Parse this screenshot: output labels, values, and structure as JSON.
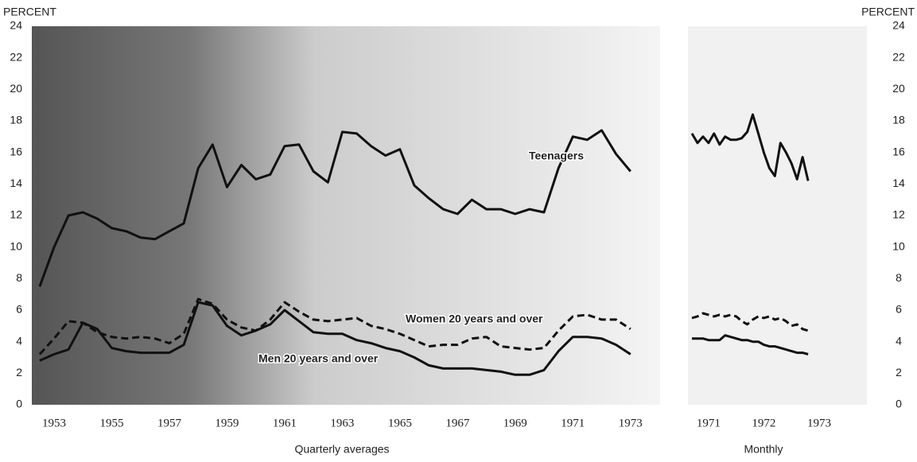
{
  "chart_data": [
    {
      "type": "line",
      "ylabel": "PERCENT",
      "xlabel": "Quarterly averages",
      "xlim": [
        1952.2,
        1973.2
      ],
      "xticks": [
        1953,
        1955,
        1957,
        1959,
        1961,
        1963,
        1965,
        1967,
        1969,
        1971,
        1973
      ],
      "ylim": [
        0,
        24
      ],
      "yticks": [
        0,
        2,
        4,
        6,
        8,
        10,
        12,
        14,
        16,
        18,
        20,
        22,
        24
      ],
      "grid": false,
      "x": [
        1952.5,
        1953,
        1953.5,
        1954,
        1954.5,
        1955,
        1955.5,
        1956,
        1956.5,
        1957,
        1957.5,
        1958,
        1958.5,
        1959,
        1959.5,
        1960,
        1960.5,
        1961,
        1961.5,
        1962,
        1962.5,
        1963,
        1963.5,
        1964,
        1964.5,
        1965,
        1965.5,
        1966,
        1966.5,
        1967,
        1967.5,
        1968,
        1968.5,
        1969,
        1969.5,
        1970,
        1970.5,
        1971,
        1971.5,
        1972,
        1972.5,
        1973
      ],
      "series": [
        {
          "name": "Teenagers",
          "color": "#111111",
          "dash": false,
          "values": [
            7.5,
            10,
            12,
            12.2,
            11.8,
            11.2,
            11,
            10.6,
            10.5,
            11,
            11.5,
            15,
            16.5,
            13.8,
            15.2,
            14.3,
            14.6,
            16.4,
            16.5,
            14.8,
            14.1,
            17.3,
            17.2,
            16.4,
            15.8,
            16.2,
            13.9,
            13.1,
            12.4,
            12.1,
            13,
            12.4,
            12.4,
            12.1,
            12.4,
            12.2,
            15,
            17,
            16.8,
            17.4,
            15.9,
            14.8
          ]
        },
        {
          "name": "Women 20 years and over",
          "color": "#111111",
          "dash": true,
          "values": [
            3.2,
            4.2,
            5.3,
            5.2,
            4.6,
            4.3,
            4.2,
            4.3,
            4.2,
            3.9,
            4.5,
            6.7,
            6.4,
            5.4,
            4.9,
            4.7,
            5.4,
            6.5,
            5.9,
            5.4,
            5.3,
            5.4,
            5.5,
            5.0,
            4.8,
            4.5,
            4.1,
            3.7,
            3.8,
            3.8,
            4.2,
            4.3,
            3.7,
            3.6,
            3.5,
            3.6,
            4.7,
            5.6,
            5.7,
            5.4,
            5.4,
            4.8
          ]
        },
        {
          "name": "Men 20 years and over",
          "color": "#111111",
          "dash": false,
          "values": [
            2.8,
            3.2,
            3.5,
            5.2,
            4.8,
            3.6,
            3.4,
            3.3,
            3.3,
            3.3,
            3.8,
            6.5,
            6.3,
            5.0,
            4.4,
            4.7,
            5.1,
            6.0,
            5.3,
            4.6,
            4.5,
            4.5,
            4.1,
            3.9,
            3.6,
            3.4,
            3.0,
            2.5,
            2.3,
            2.3,
            2.3,
            2.2,
            2.1,
            1.9,
            1.9,
            2.2,
            3.4,
            4.3,
            4.3,
            4.2,
            3.8,
            3.2
          ]
        }
      ]
    },
    {
      "type": "line",
      "ylabel": "PERCENT",
      "xlabel": "Monthly",
      "xlim": [
        1970.7,
        1973
      ],
      "xticks": [
        1971,
        1972,
        1973
      ],
      "ylim": [
        0,
        24
      ],
      "yticks": [
        0,
        2,
        4,
        6,
        8,
        10,
        12,
        14,
        16,
        18,
        20,
        22,
        24
      ],
      "grid": false,
      "x": [
        1970.7,
        1970.8,
        1970.9,
        1971.0,
        1971.1,
        1971.2,
        1971.3,
        1971.4,
        1971.5,
        1971.6,
        1971.7,
        1971.8,
        1971.9,
        1972.0,
        1972.1,
        1972.2,
        1972.3,
        1972.4,
        1972.5,
        1972.6,
        1972.7,
        1972.8
      ],
      "series": [
        {
          "color": "#111111",
          "dash": false,
          "values": [
            17.2,
            16.6,
            17.0,
            16.6,
            17.2,
            16.5,
            17.0,
            16.8,
            16.8,
            16.9,
            17.3,
            18.4,
            17.2,
            16.0,
            15.0,
            14.5,
            16.6,
            16.0,
            15.3,
            14.3,
            15.7,
            14.2
          ]
        },
        {
          "color": "#111111",
          "dash": true,
          "values": [
            5.5,
            5.6,
            5.8,
            5.7,
            5.6,
            5.7,
            5.6,
            5.7,
            5.6,
            5.3,
            5.1,
            5.4,
            5.6,
            5.5,
            5.6,
            5.4,
            5.5,
            5.3,
            5.0,
            5.1,
            4.8,
            4.7
          ]
        },
        {
          "color": "#111111",
          "dash": false,
          "values": [
            4.2,
            4.2,
            4.2,
            4.1,
            4.1,
            4.1,
            4.4,
            4.3,
            4.2,
            4.1,
            4.1,
            4.0,
            4.0,
            3.8,
            3.7,
            3.7,
            3.6,
            3.5,
            3.4,
            3.3,
            3.3,
            3.2
          ]
        }
      ]
    }
  ]
}
